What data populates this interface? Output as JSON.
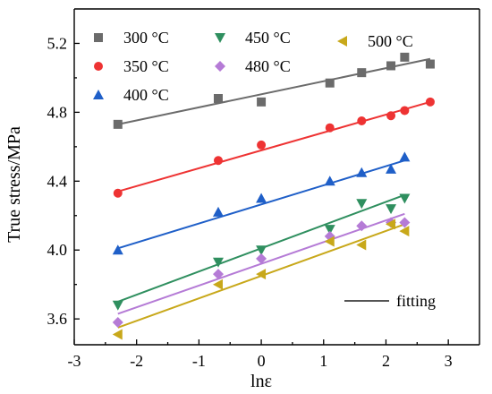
{
  "chart_data": {
    "type": "scatter",
    "xlabel": "lnε",
    "ylabel": "True stress/MPa",
    "xlim": [
      -3,
      3.5
    ],
    "ylim": [
      3.45,
      5.4
    ],
    "x_ticks": [
      -3,
      -2,
      -1,
      0,
      1,
      2,
      3
    ],
    "y_ticks": [
      3.6,
      4.0,
      4.4,
      4.8,
      5.2
    ],
    "x_tick_labels": [
      "-3",
      "-2",
      "-1",
      "0",
      "1",
      "2",
      "3"
    ],
    "y_tick_labels": [
      "3.6",
      "4.0",
      "4.4",
      "4.8",
      "5.2"
    ],
    "grid": false,
    "legend_position": "top",
    "fit_legend_label": "fitting",
    "fit_color": "#555555",
    "series": [
      {
        "name": "300 °C",
        "marker": "square",
        "color": "#6b6b6b",
        "x": [
          -2.3,
          -0.69,
          0,
          1.1,
          1.61,
          2.08,
          2.3,
          2.71
        ],
        "y": [
          4.73,
          4.88,
          4.86,
          4.97,
          5.03,
          5.07,
          5.12,
          5.08
        ],
        "fit": [
          [
            -2.3,
            4.73
          ],
          [
            2.71,
            5.11
          ]
        ]
      },
      {
        "name": "350 °C",
        "marker": "circle",
        "color": "#ee3333",
        "x": [
          -2.3,
          -0.69,
          0,
          1.1,
          1.61,
          2.08,
          2.3,
          2.71
        ],
        "y": [
          4.33,
          4.52,
          4.61,
          4.71,
          4.75,
          4.78,
          4.81,
          4.86
        ],
        "fit": [
          [
            -2.3,
            4.34
          ],
          [
            2.71,
            4.86
          ]
        ]
      },
      {
        "name": "400 °C",
        "marker": "triangle-up",
        "color": "#1f5fc8",
        "x": [
          -2.3,
          -0.69,
          0,
          1.1,
          1.61,
          2.08,
          2.3
        ],
        "y": [
          4.0,
          4.22,
          4.3,
          4.4,
          4.45,
          4.47,
          4.54
        ],
        "fit": [
          [
            -2.3,
            4.01
          ],
          [
            2.3,
            4.52
          ]
        ]
      },
      {
        "name": "450 °C",
        "marker": "triangle-down",
        "color": "#2f8f5f",
        "x": [
          -2.3,
          -0.69,
          0,
          1.1,
          1.61,
          2.08,
          2.3
        ],
        "y": [
          3.68,
          3.93,
          4.0,
          4.12,
          4.27,
          4.24,
          4.3
        ],
        "fit": [
          [
            -2.3,
            3.7
          ],
          [
            2.3,
            4.32
          ]
        ]
      },
      {
        "name": "480 °C",
        "marker": "diamond",
        "color": "#b57bd6",
        "x": [
          -2.3,
          -0.69,
          0,
          1.1,
          1.61,
          2.08,
          2.3
        ],
        "y": [
          3.58,
          3.86,
          3.95,
          4.08,
          4.14,
          4.16,
          4.16
        ],
        "fit": [
          [
            -2.3,
            3.63
          ],
          [
            2.3,
            4.21
          ]
        ]
      },
      {
        "name": "500 °C",
        "marker": "triangle-left",
        "color": "#c8a81a",
        "x": [
          -2.3,
          -0.69,
          0,
          1.1,
          1.61,
          2.08,
          2.3
        ],
        "y": [
          3.51,
          3.8,
          3.86,
          4.05,
          4.03,
          4.15,
          4.11
        ],
        "fit": [
          [
            -2.3,
            3.55
          ],
          [
            2.3,
            4.15
          ]
        ]
      }
    ]
  }
}
